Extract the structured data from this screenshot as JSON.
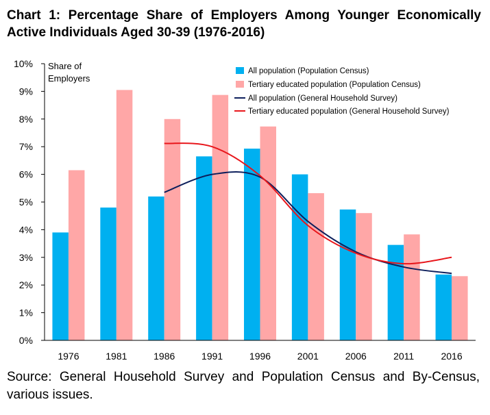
{
  "title": {
    "line1": "Chart 1: Percentage Share of Employers Among Younger Economically",
    "line2": "Active Individuals Aged 30-39 (1976-2016)"
  },
  "source": {
    "line1": "Source: General Household Survey and Population Census and By-Census,",
    "line2": "various issues."
  },
  "colors": {
    "bar_all": "#00b0f0",
    "bar_tertiary": "#ffa7a7",
    "line_all": "#0d1f5c",
    "line_tertiary": "#e8161b"
  },
  "chart_data": {
    "type": "bar",
    "categories": [
      "1976",
      "1981",
      "1986",
      "1991",
      "1996",
      "2001",
      "2006",
      "2011",
      "2016"
    ],
    "ylabel": "Share of Employers",
    "ylim": [
      0,
      10
    ],
    "yticks": [
      "0%",
      "1%",
      "2%",
      "3%",
      "4%",
      "5%",
      "6%",
      "7%",
      "8%",
      "9%",
      "10%"
    ],
    "legend_position": "top-right",
    "series": [
      {
        "name": "All population (Population Census)",
        "kind": "bar",
        "values": [
          3.9,
          4.8,
          5.2,
          6.65,
          6.93,
          6.0,
          4.73,
          3.45,
          2.38
        ]
      },
      {
        "name": "Tertiary educated population (Population Census)",
        "kind": "bar",
        "values": [
          6.15,
          9.05,
          8.0,
          8.87,
          7.73,
          5.32,
          4.6,
          3.83,
          2.32
        ]
      },
      {
        "name": "All population (General Household Survey)",
        "kind": "line",
        "x": [
          "1986",
          "1991",
          "1996",
          "2001",
          "2006",
          "2011",
          "2016"
        ],
        "values": [
          5.35,
          6.0,
          5.9,
          4.3,
          3.2,
          2.65,
          2.42
        ]
      },
      {
        "name": "Tertiary educated population (General Household Survey)",
        "kind": "line",
        "x": [
          "1986",
          "1991",
          "1996",
          "2001",
          "2006",
          "2011",
          "2016"
        ],
        "values": [
          7.12,
          7.0,
          5.95,
          4.15,
          3.15,
          2.77,
          3.0
        ]
      }
    ]
  }
}
